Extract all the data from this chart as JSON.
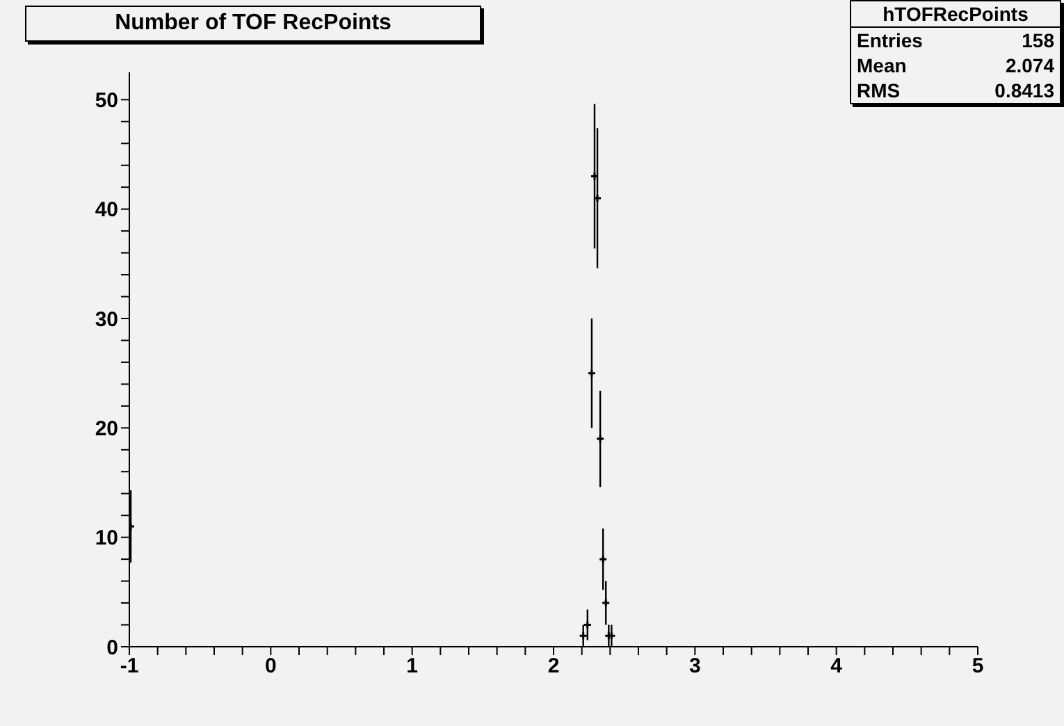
{
  "chart_data": {
    "type": "scatter",
    "title": "Number of TOF RecPoints",
    "annotations": [
      "hTOFRecPoints",
      "Entries",
      "158",
      "Mean",
      "2.074",
      "RMS",
      "0.8413"
    ],
    "x": [
      -0.99,
      2.21,
      2.24,
      2.27,
      2.29,
      2.31,
      2.33,
      2.35,
      2.37,
      2.39,
      2.41
    ],
    "values": [
      11,
      1,
      2,
      25,
      43,
      41,
      19,
      8,
      4,
      1,
      1
    ],
    "errors": [
      3.3,
      1,
      1.4,
      5,
      6.6,
      6.4,
      4.4,
      2.8,
      2,
      1,
      1
    ],
    "color": "#000000",
    "marker": "cross",
    "grid": false,
    "legend": false,
    "xlim": [
      -1,
      5
    ],
    "xticks": [
      -1,
      {
        "value": -0.8,
        "label": null
      },
      {
        "value": -0.6,
        "label": null
      },
      {
        "value": -0.4,
        "label": null
      },
      {
        "value": -0.2,
        "label": null
      },
      0,
      {
        "value": 0.2,
        "label": null
      },
      {
        "value": 0.4,
        "label": null
      },
      {
        "value": 0.6,
        "label": null
      },
      {
        "value": 0.8,
        "label": null
      },
      1,
      {
        "value": 1.2,
        "label": null
      },
      {
        "value": 1.4,
        "label": null
      },
      {
        "value": 1.6,
        "label": null
      },
      {
        "value": 1.8,
        "label": null
      },
      2,
      {
        "value": 2.2,
        "label": null
      },
      {
        "value": 2.4,
        "label": null
      },
      {
        "value": 2.6,
        "label": null
      },
      {
        "value": 2.8,
        "label": null
      },
      3,
      {
        "value": 3.2,
        "label": null
      },
      {
        "value": 3.4,
        "label": null
      },
      {
        "value": 3.6,
        "label": null
      },
      {
        "value": 3.8,
        "label": null
      },
      4,
      {
        "value": 4.2,
        "label": null
      },
      {
        "value": 4.4,
        "label": null
      },
      {
        "value": 4.6,
        "label": null
      },
      {
        "value": 4.8,
        "label": null
      },
      5
    ],
    "ylim": [
      0,
      52.5
    ],
    "yticks": [
      0,
      {
        "value": 2,
        "label": null
      },
      {
        "value": 4,
        "label": null
      },
      {
        "value": 6,
        "label": null
      },
      {
        "value": 8,
        "label": null
      },
      10,
      {
        "value": 12,
        "label": null
      },
      {
        "value": 14,
        "label": null
      },
      {
        "value": 16,
        "label": null
      },
      {
        "value": 18,
        "label": null
      },
      20,
      {
        "value": 22,
        "label": null
      },
      {
        "value": 24,
        "label": null
      },
      {
        "value": 26,
        "label": null
      },
      {
        "value": 28,
        "label": null
      },
      30,
      {
        "value": 32,
        "label": null
      },
      {
        "value": 34,
        "label": null
      },
      {
        "value": 36,
        "label": null
      },
      {
        "value": 38,
        "label": null
      },
      40,
      {
        "value": 42,
        "label": null
      },
      {
        "value": 44,
        "label": null
      },
      {
        "value": 46,
        "label": null
      },
      {
        "value": 48,
        "label": null
      },
      50
    ]
  }
}
